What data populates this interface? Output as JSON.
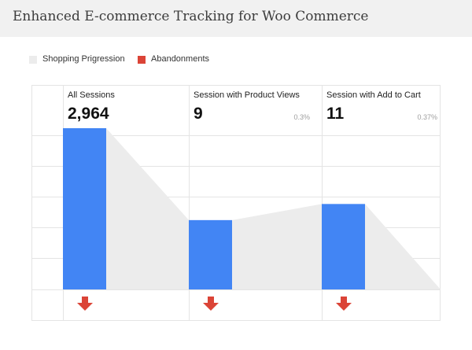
{
  "header": {
    "title": "Enhanced E-commerce Tracking for Woo Commerce"
  },
  "legend": {
    "items": [
      {
        "label": "Shopping Prigression",
        "color": "#ececec"
      },
      {
        "label": "Abandonments",
        "color": "#db4437"
      }
    ]
  },
  "funnel": {
    "stages": [
      {
        "name": "All Sessions",
        "value": "2,964",
        "percent": ""
      },
      {
        "name": "Session with Product Views",
        "value": "9",
        "percent": "0.3%"
      },
      {
        "name": "Session with Add to Cart",
        "value": "11",
        "percent": "0.37%"
      }
    ],
    "bar_level": [
      1.0,
      0.43,
      0.53
    ],
    "flow_end_level": 0.0,
    "colors": {
      "bar": "#4285f4",
      "flow": "#ececec",
      "arrow": "#db4437",
      "grid": "#e4e4e4"
    }
  }
}
